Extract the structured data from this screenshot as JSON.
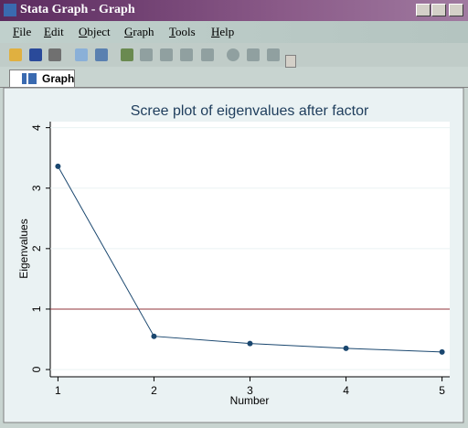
{
  "window": {
    "title": "Stata Graph - Graph"
  },
  "menu": [
    "File",
    "Edit",
    "Object",
    "Graph",
    "Tools",
    "Help"
  ],
  "tab": {
    "label": "Graph"
  },
  "chart_data": {
    "type": "line",
    "title": "Scree plot of eigenvalues after factor",
    "x_label": "Number",
    "y_label": "Eigenvalues",
    "x": [
      1,
      2,
      3,
      4,
      5
    ],
    "values": [
      3.36,
      0.55,
      0.43,
      0.35,
      0.29
    ],
    "color": "#1a476f",
    "xlim": [
      0.92,
      5.08
    ],
    "xticks": [
      1,
      2,
      3,
      4,
      5
    ],
    "ylim": [
      -0.12,
      4.1
    ],
    "yticks": [
      0,
      1,
      2,
      3,
      4
    ],
    "grid": true,
    "yline": {
      "value": 1,
      "color": "#90353b"
    }
  }
}
